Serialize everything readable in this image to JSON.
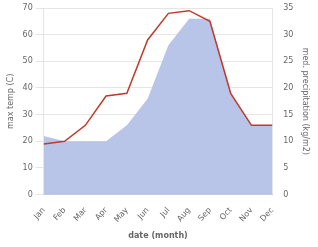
{
  "chart_data": {
    "type": "line",
    "categories": [
      "Jan",
      "Feb",
      "Mar",
      "Apr",
      "May",
      "Jun",
      "Jul",
      "Aug",
      "Sep",
      "Oct",
      "Nov",
      "Dec"
    ],
    "series": [
      {
        "type": "area",
        "color": "#b8c4e8",
        "axis": "y2",
        "values": [
          11,
          10,
          10,
          10,
          13,
          18,
          28,
          33,
          33,
          19,
          13,
          13
        ]
      },
      {
        "type": "line",
        "color": "#c0392b",
        "values": [
          19,
          20,
          26,
          37,
          38,
          58,
          68,
          69,
          65,
          38,
          26,
          26
        ]
      }
    ],
    "xlabel": "date (month)",
    "ylabel": "max temp (C)",
    "y2label": "med. precipitation (kg/m2)",
    "ylim": [
      0,
      70
    ],
    "yticks": [
      0,
      10,
      20,
      30,
      40,
      50,
      60,
      70
    ],
    "y2lim": [
      0,
      35
    ],
    "y2ticks": [
      0,
      5,
      10,
      15,
      20,
      25,
      30,
      35
    ],
    "grid": true,
    "legend": false
  }
}
